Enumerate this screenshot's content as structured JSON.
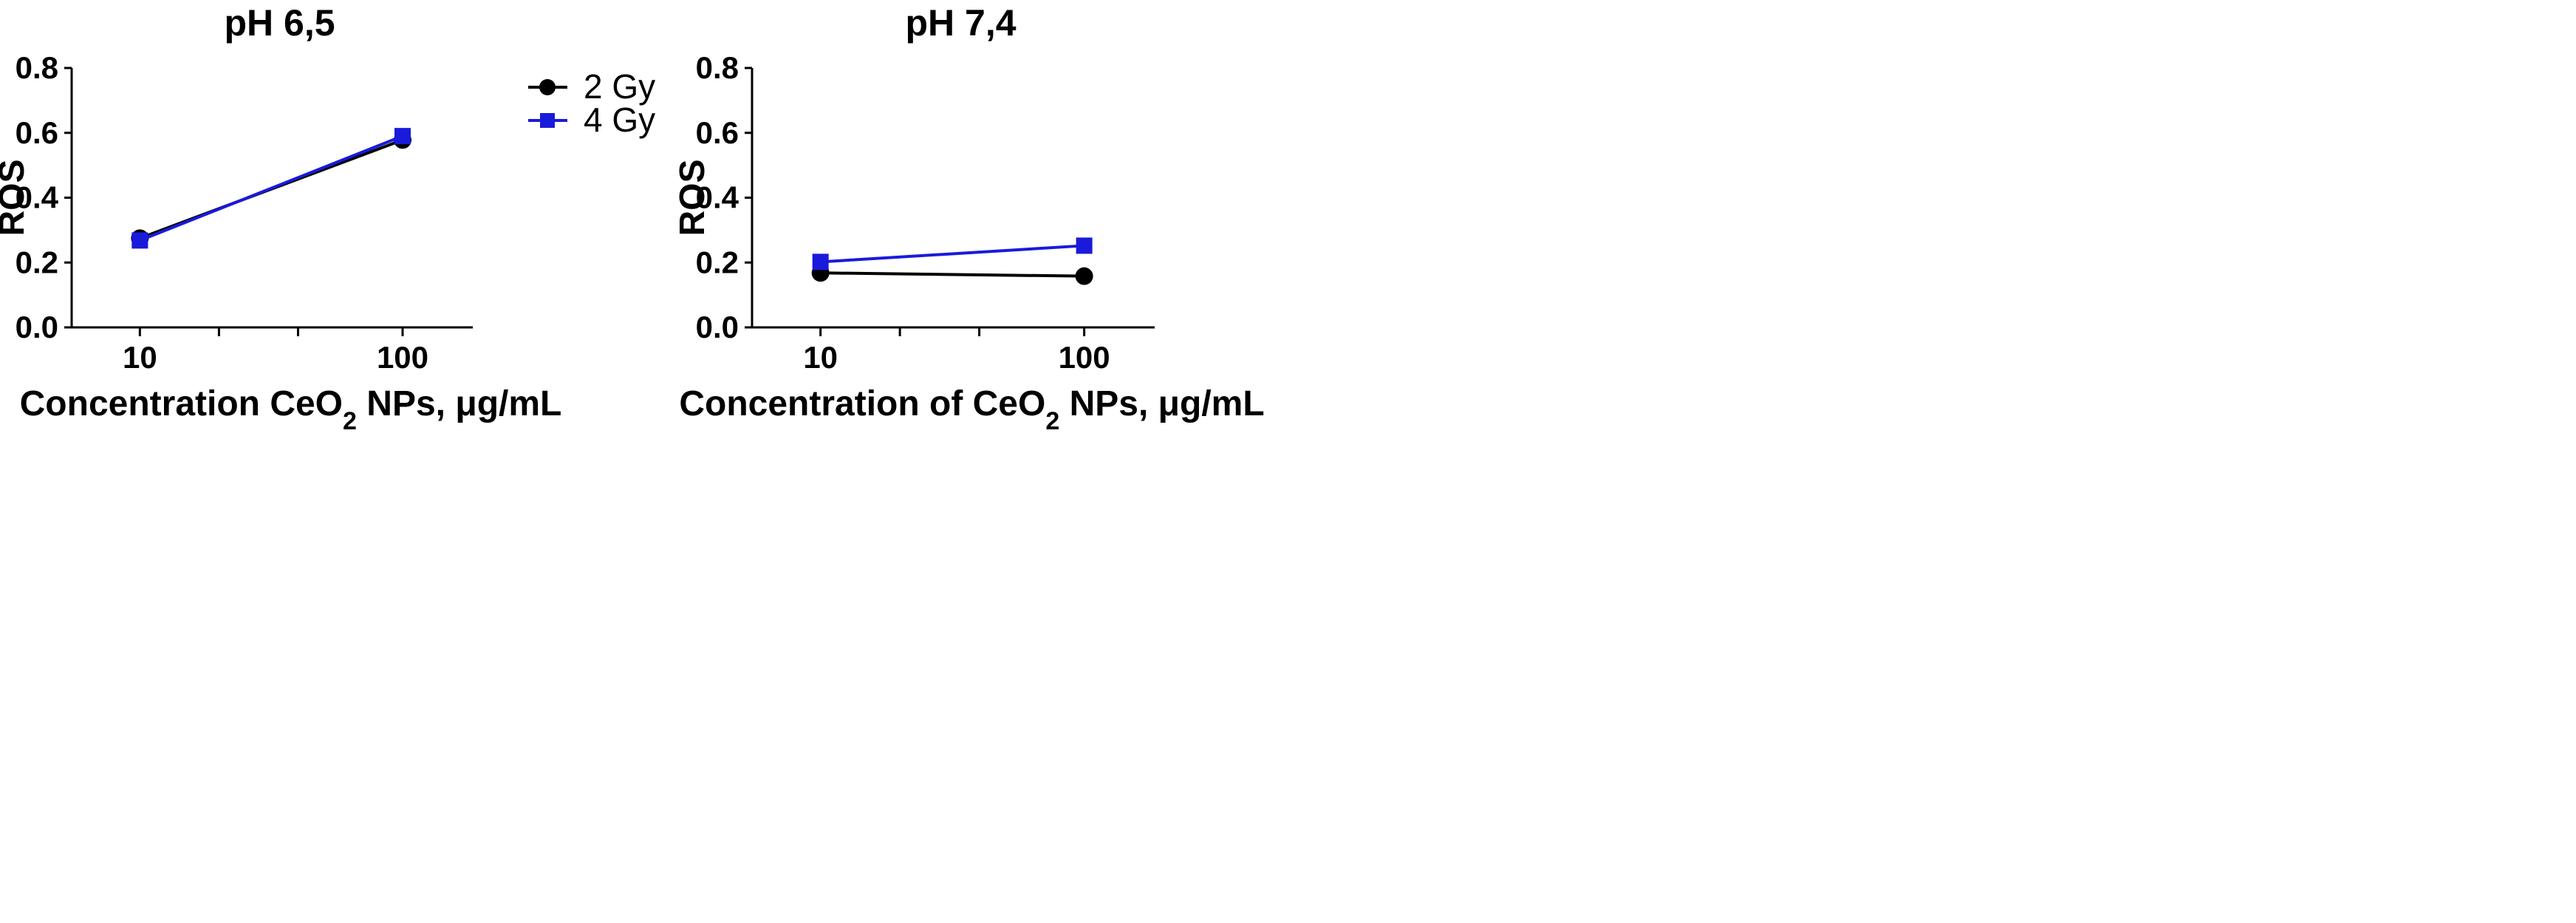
{
  "chart_data": [
    {
      "type": "line",
      "title": "pH 6,5",
      "xlabel": "Concentration CeO₂ NPs, μg/mL",
      "ylabel": "ROS",
      "xscale": "log",
      "x": [
        10,
        100
      ],
      "xticks": [
        "10",
        "100"
      ],
      "ylim": [
        0.0,
        0.8
      ],
      "yticks": [
        "0.0",
        "0.2",
        "0.4",
        "0.6",
        "0.8"
      ],
      "grid": false,
      "series": [
        {
          "name": "2 Gy",
          "values": [
            0.275,
            0.578
          ],
          "color": "#000000",
          "marker": "circle"
        },
        {
          "name": "4 Gy",
          "values": [
            0.268,
            0.59
          ],
          "color": "#1a1adb",
          "marker": "square"
        }
      ]
    },
    {
      "type": "line",
      "title": "pH 7,4",
      "xlabel": "Concentration of CeO₂ NPs, μg/mL",
      "ylabel": "ROS",
      "xscale": "log",
      "x": [
        10,
        100
      ],
      "xticks": [
        "10",
        "100"
      ],
      "ylim": [
        0.0,
        0.8
      ],
      "yticks": [
        "0.0",
        "0.2",
        "0.4",
        "0.6",
        "0.8"
      ],
      "grid": false,
      "series": [
        {
          "name": "2 Gy",
          "values": [
            0.168,
            0.158
          ],
          "color": "#000000",
          "marker": "circle"
        },
        {
          "name": "4 Gy",
          "values": [
            0.202,
            0.252
          ],
          "color": "#1a1adb",
          "marker": "square"
        }
      ]
    }
  ],
  "legend": {
    "placement": "center",
    "items": [
      {
        "label": "2 Gy",
        "color": "#000000",
        "marker": "circle"
      },
      {
        "label": "4 Gy",
        "color": "#1a1adb",
        "marker": "square"
      }
    ]
  }
}
